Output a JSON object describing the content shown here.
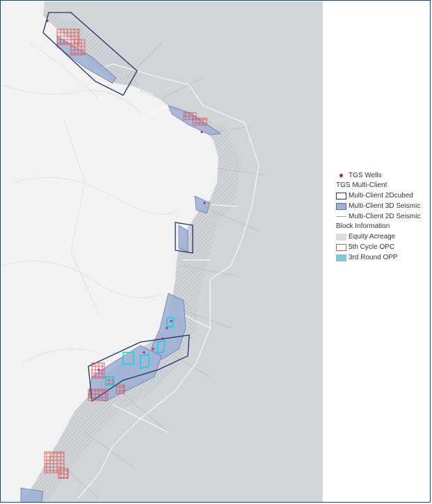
{
  "legend": {
    "wells": {
      "label": "TGS Wells",
      "icon": "dot-icon",
      "color": "#c2185b"
    },
    "multi_client_heading": "TGS Multi-Client",
    "multi_client_items": [
      {
        "label": "Multi-Client 2Dcubed",
        "swatch": "outline-navy"
      },
      {
        "label": "Multi-Client 3D Seismic",
        "swatch": "fill-blue"
      },
      {
        "label": "Multi-Client 2D Seismic",
        "swatch": "line-thin"
      }
    ],
    "block_heading": "Block Information",
    "block_items": [
      {
        "label": "Equity Acreage",
        "swatch": "fill-grey"
      },
      {
        "label": "5th Cycle OPC",
        "swatch": "outline-red"
      },
      {
        "label": "3rd Round OPP",
        "swatch": "fill-cyan"
      }
    ]
  },
  "colors": {
    "ocean": "#d2d5d8",
    "land": "#f2f2f2",
    "seismic_3d": "#9db0d6",
    "outline_2dcubed": "#1f3266",
    "opc_red": "#e05050",
    "opp_cyan": "#00d4e8",
    "wells": "#c2185b"
  }
}
